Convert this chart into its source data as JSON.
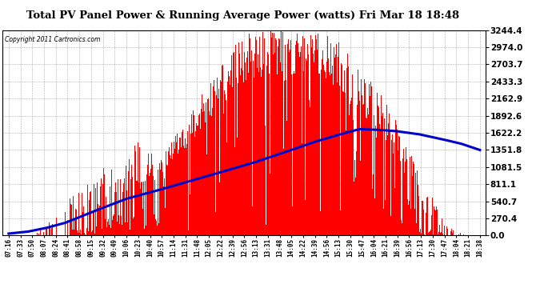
{
  "title": "Total PV Panel Power & Running Average Power (watts) Fri Mar 18 18:48",
  "copyright": "Copyright 2011 Cartronics.com",
  "background_color": "#ffffff",
  "plot_bg_color": "#ffffff",
  "grid_color": "#888888",
  "bar_color": "#ff0000",
  "line_color": "#0000cc",
  "yticks": [
    0.0,
    270.4,
    540.7,
    811.1,
    1081.5,
    1351.8,
    1622.2,
    1892.6,
    2162.9,
    2433.3,
    2703.7,
    2974.0,
    3244.4
  ],
  "ymax": 3244.4,
  "xtick_labels": [
    "07:16",
    "07:33",
    "07:50",
    "08:07",
    "08:24",
    "08:41",
    "08:58",
    "09:15",
    "09:32",
    "09:49",
    "10:06",
    "10:23",
    "10:40",
    "10:57",
    "11:14",
    "11:31",
    "11:48",
    "12:05",
    "12:22",
    "12:39",
    "12:56",
    "13:13",
    "13:31",
    "13:48",
    "14:05",
    "14:22",
    "14:39",
    "14:56",
    "15:13",
    "15:30",
    "15:47",
    "16:04",
    "16:21",
    "16:39",
    "16:56",
    "17:13",
    "17:30",
    "17:47",
    "18:04",
    "18:21",
    "18:38"
  ],
  "n_points": 820,
  "seed": 12,
  "running_avg_points": [
    [
      0.0,
      30
    ],
    [
      0.04,
      60
    ],
    [
      0.08,
      120
    ],
    [
      0.12,
      200
    ],
    [
      0.18,
      380
    ],
    [
      0.25,
      580
    ],
    [
      0.32,
      720
    ],
    [
      0.38,
      850
    ],
    [
      0.45,
      1000
    ],
    [
      0.52,
      1150
    ],
    [
      0.58,
      1300
    ],
    [
      0.65,
      1480
    ],
    [
      0.7,
      1590
    ],
    [
      0.745,
      1680
    ],
    [
      0.78,
      1670
    ],
    [
      0.82,
      1650
    ],
    [
      0.87,
      1600
    ],
    [
      0.92,
      1520
    ],
    [
      0.96,
      1450
    ],
    [
      1.0,
      1350
    ]
  ]
}
